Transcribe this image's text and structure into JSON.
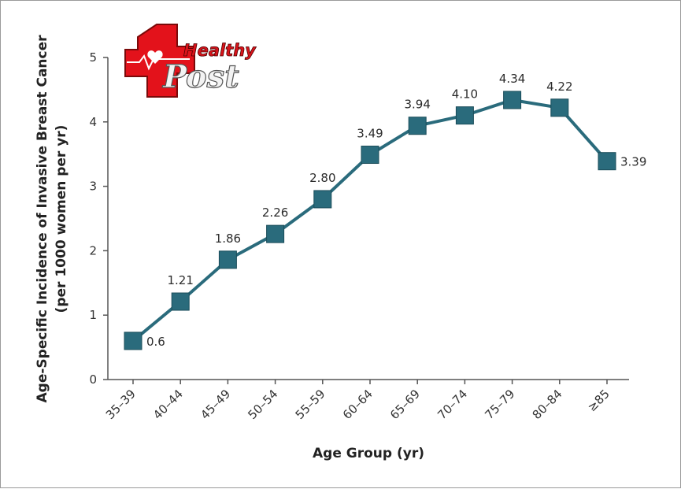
{
  "logo": {
    "line1": "Healthy",
    "line2": "Post",
    "colors": {
      "cross": "#e3121b",
      "heart": "#ffffff"
    }
  },
  "chart_data": {
    "type": "line",
    "title": "",
    "xlabel": "Age Group (yr)",
    "ylabel_line1": "Age-Specific Incidence of Invasive Breast Cancer",
    "ylabel_line2": "(per 1000 women per yr)",
    "categories": [
      "35–39",
      "40–44",
      "45–49",
      "50–54",
      "55–59",
      "60–64",
      "65–69",
      "70–74",
      "75–79",
      "80–84",
      "≥85"
    ],
    "values": [
      0.6,
      1.21,
      1.86,
      2.26,
      2.8,
      3.49,
      3.94,
      4.1,
      4.34,
      4.22,
      3.39
    ],
    "value_labels": [
      "0.6",
      "1.21",
      "1.86",
      "2.26",
      "2.80",
      "3.49",
      "3.94",
      "4.10",
      "4.34",
      "4.22",
      "3.39"
    ],
    "ylim": [
      0,
      5
    ],
    "yticks": [
      "0",
      "1",
      "2",
      "3",
      "4",
      "5"
    ],
    "grid": false,
    "legend": "none",
    "colors": {
      "line": "#2a6b7c",
      "marker": "#2a6b7c",
      "axis": "#555555"
    }
  }
}
